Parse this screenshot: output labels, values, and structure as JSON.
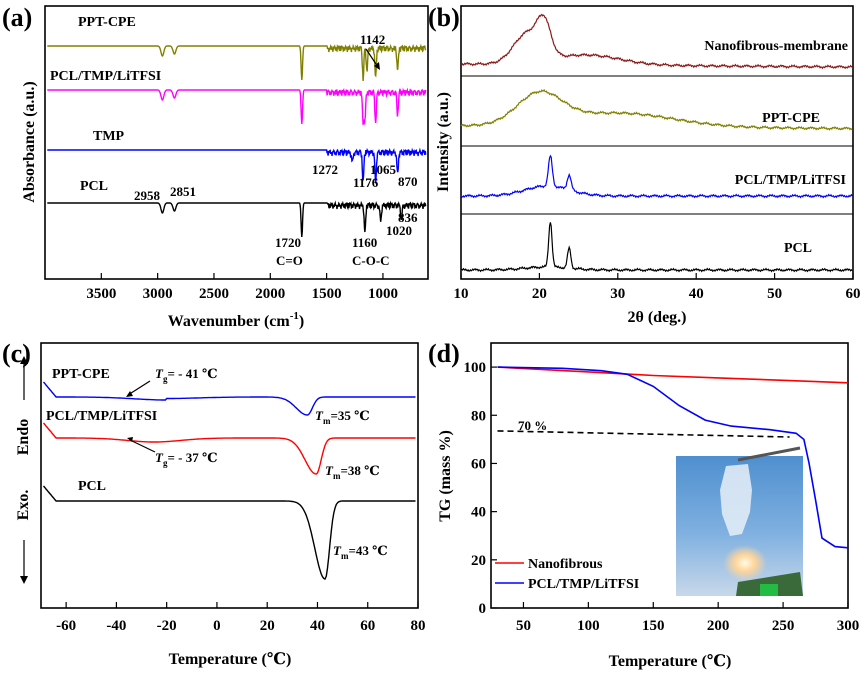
{
  "chart_data": [
    {
      "panel": "(a)",
      "type": "line",
      "xlabel": "Wavenumber (cm",
      "xlabel_sup": "-1",
      "xlabel_tail": ")",
      "ylabel": "Absorbance (a.u.)",
      "xlim": [
        4000,
        600
      ],
      "x_ticks": [
        3500,
        3000,
        2500,
        2000,
        1500,
        1000
      ],
      "series": [
        {
          "name": "PPT-CPE",
          "color": "#808000",
          "peaks": [
            2958,
            2851,
            1720,
            1176,
            1142,
            1065,
            870
          ]
        },
        {
          "name": "PCL/TMP/LiTFSI",
          "color": "#ff00ff",
          "peaks": [
            2958,
            2851,
            1720,
            1176,
            1160,
            1065,
            870
          ]
        },
        {
          "name": "TMP",
          "color": "#0000ff",
          "peaks": [
            1272,
            1176,
            1065,
            870
          ]
        },
        {
          "name": "PCL",
          "color": "#000000",
          "peaks": [
            2958,
            2851,
            1720,
            1160,
            1020,
            836
          ]
        }
      ],
      "annotations": [
        "1142",
        "1272",
        "1176",
        "1065",
        "870",
        "2958",
        "2851",
        "1720",
        "C=O",
        "1160",
        "C-O-C",
        "1020",
        "836"
      ]
    },
    {
      "panel": "(b)",
      "type": "line",
      "xlabel": "2θ (deg.)",
      "ylabel": "Intensity (a.u.)",
      "xlim": [
        10,
        60
      ],
      "x_ticks": [
        10,
        20,
        30,
        40,
        50,
        60
      ],
      "series": [
        {
          "name": "Nanofibrous-membrane",
          "color": "#8b1a1a",
          "peaks": [
            18.5,
            20.5
          ]
        },
        {
          "name": "PPT-CPE",
          "color": "#808000",
          "peaks": [
            20.0
          ]
        },
        {
          "name": "PCL/TMP/LiTFSI",
          "color": "#0000ff",
          "peaks": [
            21.4,
            23.8
          ]
        },
        {
          "name": "PCL",
          "color": "#000000",
          "peaks": [
            21.4,
            23.8
          ]
        }
      ]
    },
    {
      "panel": "(c)",
      "type": "line",
      "xlabel": "Temperature (℃)",
      "ylabel_top": "Endo",
      "ylabel_bottom": "Exo.",
      "xlim": [
        -70,
        80
      ],
      "x_ticks": [
        -60,
        -40,
        -20,
        0,
        20,
        40,
        60,
        80
      ],
      "series": [
        {
          "name": "PPT-CPE",
          "color": "#0000ff",
          "Tg": "-41 ℃",
          "Tm": "35 ℃"
        },
        {
          "name": "PCL/TMP/LiTFSI",
          "color": "#ff0000",
          "Tg": "-37 ℃",
          "Tm": "38 ℃"
        },
        {
          "name": "PCL",
          "color": "#000000",
          "Tm": "43 ℃"
        }
      ],
      "annotations": {
        "ppt_tg": "= - 41 ℃",
        "ppt_tm": "=35 ℃",
        "pcl_tmp_tg": "= - 37 ℃",
        "pcl_tmp_tm": "=38 ℃",
        "pcl_tm": "=43 ℃"
      }
    },
    {
      "panel": "(d)",
      "type": "line",
      "xlabel": "Temperature (℃)",
      "ylabel": "TG (mass %)",
      "xlim": [
        25,
        300
      ],
      "ylim": [
        0,
        110
      ],
      "x_ticks": [
        50,
        100,
        150,
        200,
        250,
        300
      ],
      "y_ticks": [
        0,
        20,
        40,
        60,
        80,
        100
      ],
      "annotation": "70 %",
      "series": [
        {
          "name": "Nanofibrous",
          "color": "#ff0000",
          "x": [
            30,
            100,
            150,
            200,
            250,
            300
          ],
          "y": [
            100,
            98,
            96.5,
            95.5,
            94.5,
            93.5
          ]
        },
        {
          "name": "PCL/TMP/LiTFSI",
          "color": "#0000ff",
          "x": [
            30,
            80,
            110,
            130,
            150,
            170,
            190,
            210,
            240,
            260,
            266,
            270,
            275,
            280,
            290,
            300
          ],
          "y": [
            100,
            99.5,
            98.5,
            97,
            92,
            84,
            78,
            75.5,
            74,
            72.5,
            70,
            60,
            45,
            29,
            25.5,
            25
          ]
        },
        {
          "name": "70% reference",
          "color": "#000000",
          "style": "dashed",
          "x": [
            30,
            255
          ],
          "y": [
            73.5,
            71
          ]
        }
      ]
    }
  ]
}
